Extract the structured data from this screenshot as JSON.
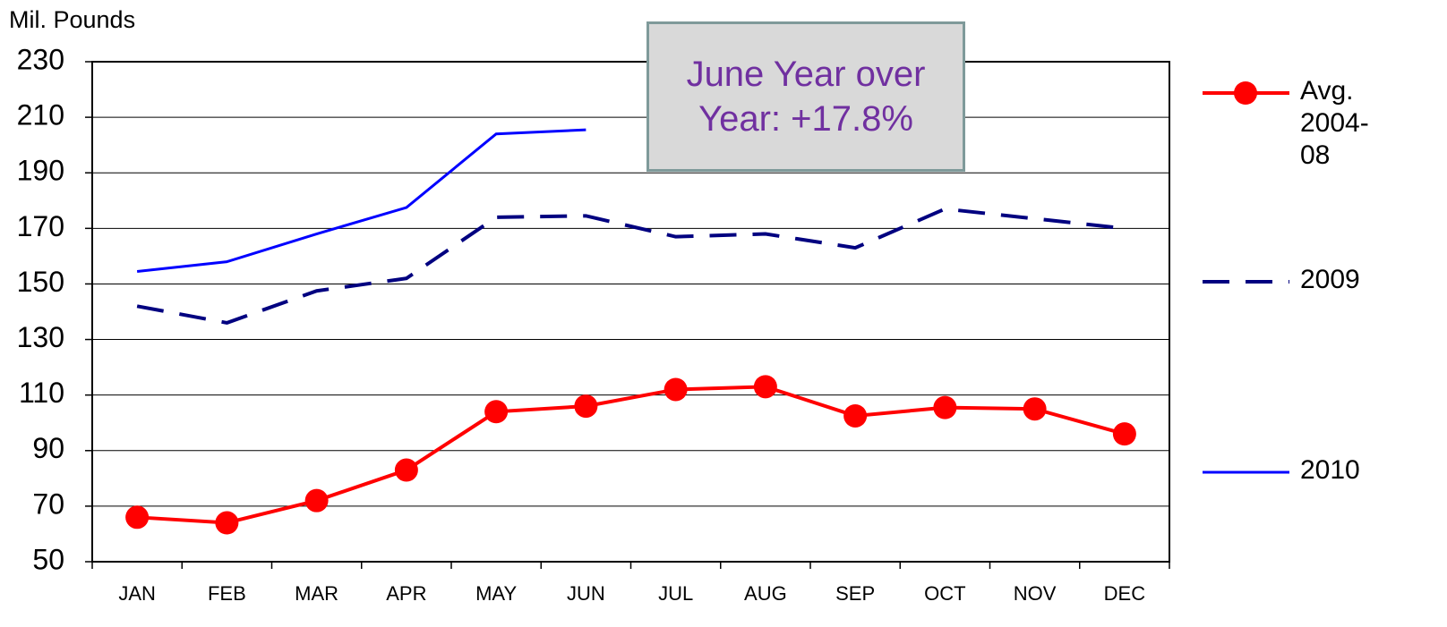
{
  "chart_data": {
    "type": "line",
    "y_label": "Mil. Pounds",
    "annotation": "June Year over Year:  +17.8%",
    "categories": [
      "JAN",
      "FEB",
      "MAR",
      "APR",
      "MAY",
      "JUN",
      "JUL",
      "AUG",
      "SEP",
      "OCT",
      "NOV",
      "DEC"
    ],
    "series": [
      {
        "name": "Avg. 2004-08",
        "color": "#ff0000",
        "style": "solid-marker",
        "values": [
          66,
          64,
          72,
          83,
          104,
          106,
          112,
          113,
          102.5,
          105.5,
          105,
          96
        ]
      },
      {
        "name": "2009",
        "color": "#000080",
        "style": "dashed",
        "values": [
          142,
          136,
          147.5,
          152,
          174,
          174.5,
          167,
          168,
          163,
          177,
          173.5,
          170
        ]
      },
      {
        "name": "2010",
        "color": "#0000ff",
        "style": "solid",
        "values": [
          154.5,
          158,
          168,
          177.5,
          204,
          205.5,
          null,
          null,
          null,
          null,
          null,
          null
        ]
      }
    ],
    "ylim": [
      50,
      230
    ],
    "yticks": [
      50,
      70,
      90,
      110,
      130,
      150,
      170,
      190,
      210,
      230
    ],
    "grid": true,
    "legend": "right"
  }
}
